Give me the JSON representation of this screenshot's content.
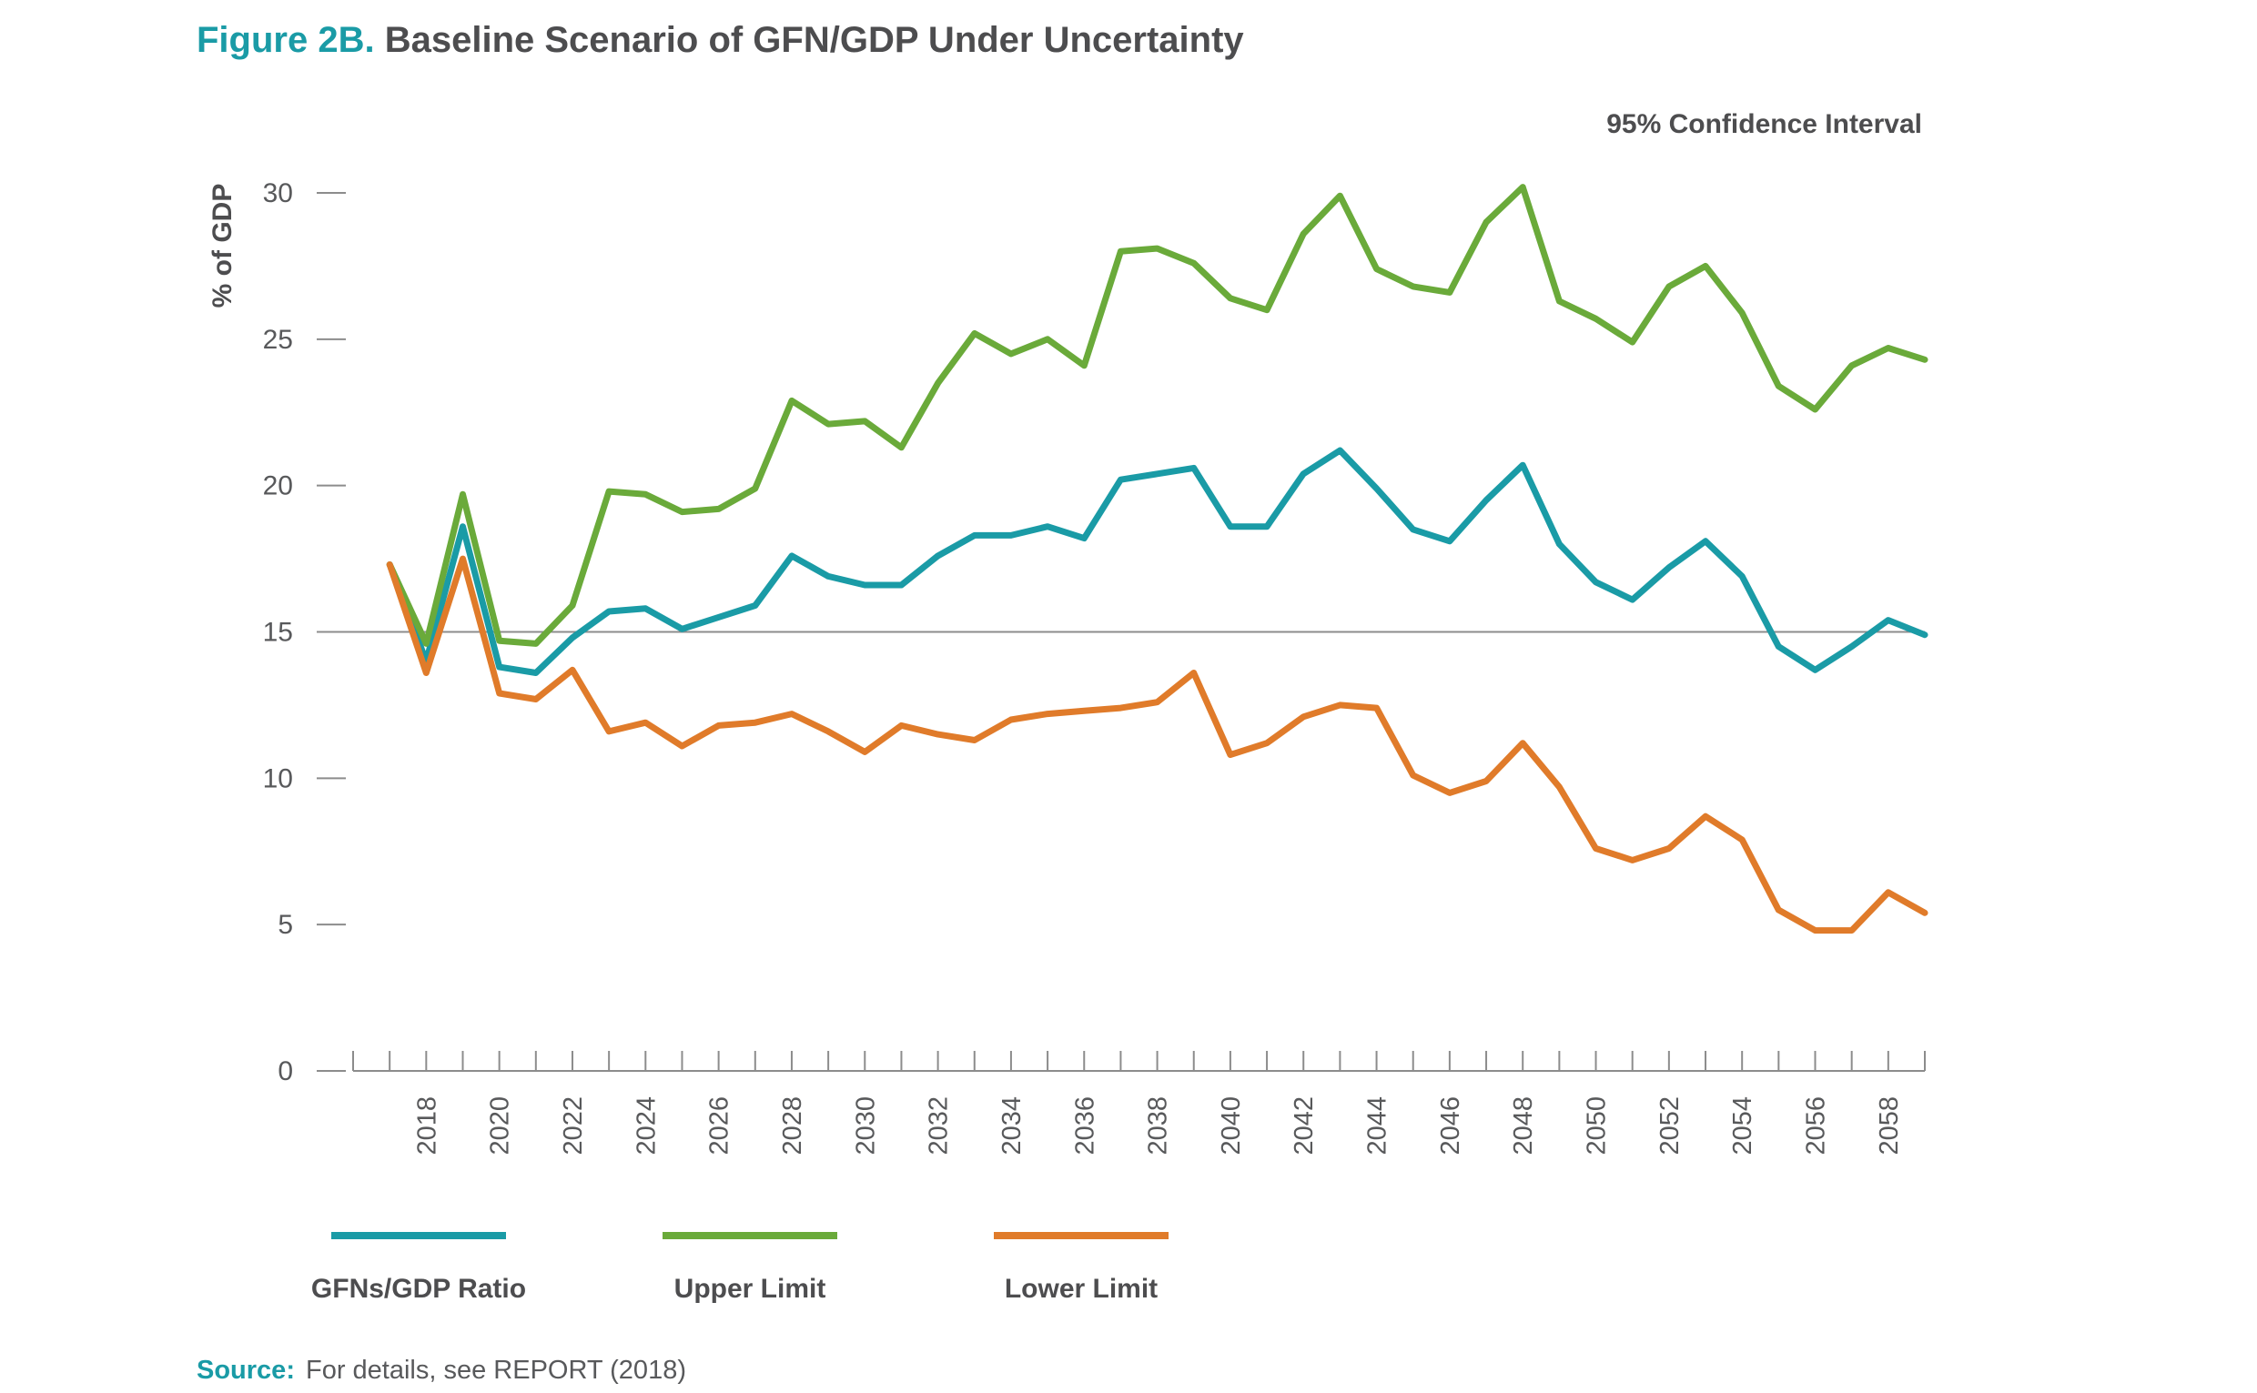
{
  "figure": {
    "label": "Figure 2B.",
    "title": "Baseline Scenario of GFN/GDP Under Uncertainty",
    "subtitle": "95% Confidence Interval",
    "source_label": "Source:",
    "source_text": "For details, see REPORT (2018)"
  },
  "colors": {
    "accent": "#1a9ba6",
    "ratio": "#1a9ba6",
    "upper": "#6aaa3a",
    "lower": "#e07b2a",
    "axis": "#8c8c8c",
    "text": "#4d4d4f"
  },
  "chart_data": {
    "type": "line",
    "title": "Baseline Scenario of GFN/GDP Under Uncertainty",
    "subtitle": "95% Confidence Interval",
    "xlabel": "",
    "ylabel": "% of GDP",
    "ylim": [
      0,
      30
    ],
    "yticks": [
      0,
      5,
      10,
      15,
      20,
      25,
      30
    ],
    "xlim": [
      2016,
      2059
    ],
    "x_tick_labels": [
      2018,
      2020,
      2022,
      2024,
      2026,
      2028,
      2030,
      2032,
      2034,
      2036,
      2038,
      2040,
      2042,
      2044,
      2046,
      2048,
      2050,
      2052,
      2054,
      2056,
      2058
    ],
    "reference_line": 15,
    "grid": false,
    "legend_position": "bottom",
    "x": [
      2017,
      2018,
      2019,
      2020,
      2021,
      2022,
      2023,
      2024,
      2025,
      2026,
      2027,
      2028,
      2029,
      2030,
      2031,
      2032,
      2033,
      2034,
      2035,
      2036,
      2037,
      2038,
      2039,
      2040,
      2041,
      2042,
      2043,
      2044,
      2045,
      2046,
      2047,
      2048,
      2049,
      2050,
      2051,
      2052,
      2053,
      2054,
      2055,
      2056,
      2057,
      2058,
      2059
    ],
    "series": [
      {
        "name": "GFNs/GDP Ratio",
        "color": "#1a9ba6",
        "values": [
          17.3,
          14.0,
          18.6,
          13.8,
          13.6,
          14.8,
          15.7,
          15.8,
          15.1,
          15.5,
          15.9,
          17.6,
          16.9,
          16.6,
          16.6,
          17.6,
          18.3,
          18.3,
          18.6,
          18.2,
          20.2,
          20.4,
          20.6,
          18.6,
          18.6,
          20.4,
          21.2,
          19.9,
          18.5,
          18.1,
          19.5,
          20.7,
          18.0,
          16.7,
          16.1,
          17.2,
          18.1,
          16.9,
          14.5,
          13.7,
          14.5,
          15.4,
          14.9
        ]
      },
      {
        "name": "Upper Limit",
        "color": "#6aaa3a",
        "values": [
          17.3,
          14.6,
          19.7,
          14.7,
          14.6,
          15.9,
          19.8,
          19.7,
          19.1,
          19.2,
          19.9,
          22.9,
          22.1,
          22.2,
          21.3,
          23.5,
          25.2,
          24.5,
          25.0,
          24.1,
          28.0,
          28.1,
          27.6,
          26.4,
          26.0,
          28.6,
          29.9,
          27.4,
          26.8,
          26.6,
          29.0,
          30.2,
          26.3,
          25.7,
          24.9,
          26.8,
          27.5,
          25.9,
          23.4,
          22.6,
          24.1,
          24.7,
          24.3
        ]
      },
      {
        "name": "Lower Limit",
        "color": "#e07b2a",
        "values": [
          17.3,
          13.6,
          17.5,
          12.9,
          12.7,
          13.7,
          11.6,
          11.9,
          11.1,
          11.8,
          11.9,
          12.2,
          11.6,
          10.9,
          11.8,
          11.5,
          11.3,
          12.0,
          12.2,
          12.3,
          12.4,
          12.6,
          13.6,
          10.8,
          11.2,
          12.1,
          12.5,
          12.4,
          10.1,
          9.5,
          9.9,
          11.2,
          9.7,
          7.6,
          7.2,
          7.6,
          8.7,
          7.9,
          5.5,
          4.8,
          4.8,
          6.1,
          5.4
        ]
      }
    ]
  }
}
